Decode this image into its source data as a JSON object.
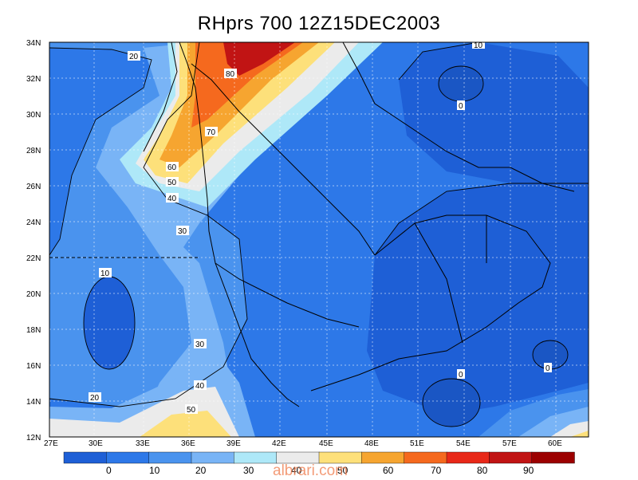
{
  "title": "RHprs 700 12Z15DEC2003",
  "lon_labels": [
    "27E",
    "30E",
    "33E",
    "36E",
    "39E",
    "42E",
    "45E",
    "48E",
    "51E",
    "54E",
    "57E",
    "60E"
  ],
  "lat_labels": [
    "34N",
    "32N",
    "30N",
    "28N",
    "26N",
    "24N",
    "22N",
    "20N",
    "18N",
    "16N",
    "14N",
    "12N"
  ],
  "colorbar": {
    "labels": [
      "0",
      "10",
      "20",
      "30",
      "40",
      "50",
      "60",
      "70",
      "80",
      "90"
    ],
    "colors": [
      "#1e5fd6",
      "#2d78e8",
      "#4a93ee",
      "#79b4f6",
      "#aee8f8",
      "#ebebeb",
      "#fde07a",
      "#f6a530",
      "#f5691e",
      "#e82818",
      "#c11414",
      "#9c0000"
    ]
  },
  "contour_labels": [
    "10",
    "20",
    "30",
    "40",
    "50",
    "60",
    "70",
    "80",
    "10",
    "20",
    "30",
    "40",
    "50",
    "0",
    "0",
    "0"
  ],
  "watermark": "albrari.com"
}
